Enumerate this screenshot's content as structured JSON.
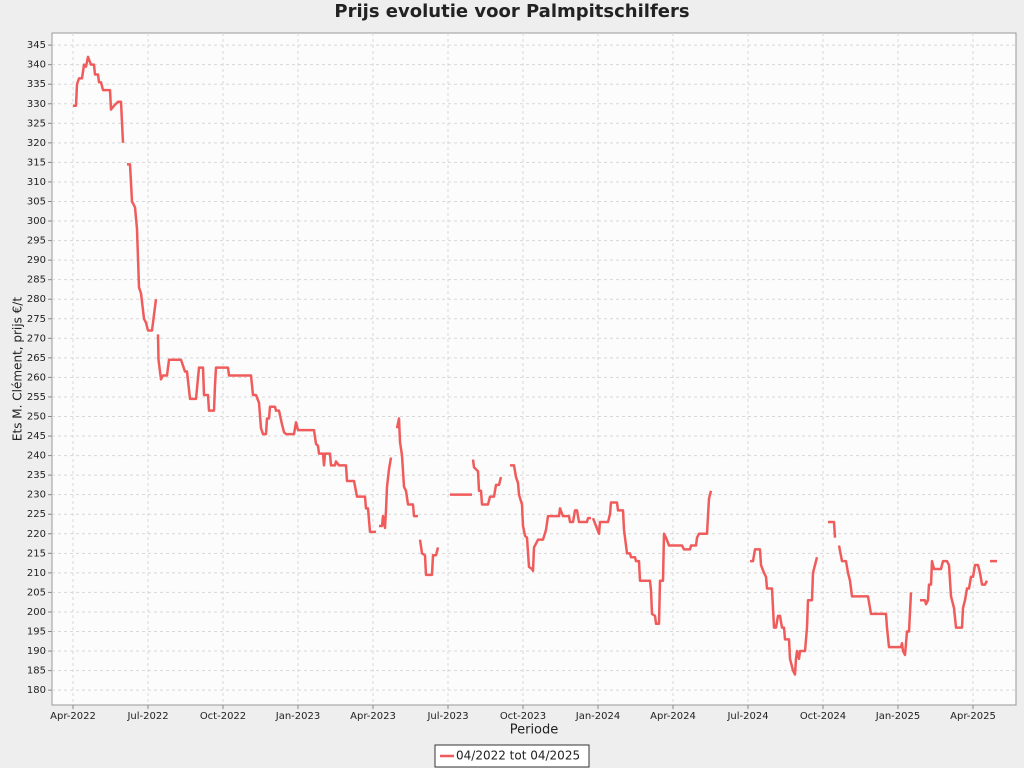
{
  "chart_data": {
    "type": "line",
    "title": "Prijs evolutie voor Palmpitschilfers",
    "x_label": "Periode",
    "y_label": "Ets M. Clément, prijs €/t",
    "xlim": [
      -0.84,
      37.72
    ],
    "ylim": [
      176.2,
      348.1
    ],
    "xticks": [
      {
        "value": 0,
        "label": "Apr-2022"
      },
      {
        "value": 3,
        "label": "Jul-2022"
      },
      {
        "value": 6,
        "label": "Oct-2022"
      },
      {
        "value": 9,
        "label": "Jan-2023"
      },
      {
        "value": 12,
        "label": "Apr-2023"
      },
      {
        "value": 15,
        "label": "Jul-2023"
      },
      {
        "value": 18,
        "label": "Oct-2023"
      },
      {
        "value": 21,
        "label": "Jan-2024"
      },
      {
        "value": 24,
        "label": "Apr-2024"
      },
      {
        "value": 27,
        "label": "Jul-2024"
      },
      {
        "value": 30,
        "label": "Oct-2024"
      },
      {
        "value": 33,
        "label": "Jan-2025"
      },
      {
        "value": 36,
        "label": "Apr-2025"
      }
    ],
    "yticks": [
      180,
      185,
      190,
      195,
      200,
      205,
      210,
      215,
      220,
      225,
      230,
      235,
      240,
      245,
      250,
      255,
      260,
      265,
      270,
      275,
      280,
      285,
      290,
      295,
      300,
      305,
      310,
      315,
      320,
      325,
      330,
      335,
      340,
      345
    ],
    "grid": true,
    "legend": "bottom",
    "series": [
      {
        "name": "04/2022 tot 04/2025",
        "color": "#f05c5c",
        "x": [
          0,
          0.12,
          0.16,
          0.24,
          0.36,
          0.44,
          0.52,
          0.6,
          0.72,
          0.84,
          0.88,
          1.0,
          1.04,
          1.12,
          1.2,
          1.48,
          1.52,
          1.64,
          1.8,
          1.92,
          2.0,
          null,
          2.16,
          2.28,
          2.36,
          2.48,
          2.56,
          2.64,
          2.72,
          2.84,
          2.92,
          3.0,
          3.16,
          3.32,
          null,
          3.4,
          3.42,
          3.52,
          3.6,
          3.76,
          3.84,
          4.32,
          4.48,
          4.56,
          4.68,
          4.92,
          5.04,
          5.2,
          5.24,
          5.4,
          5.44,
          5.64,
          5.68,
          5.72,
          6.2,
          6.24,
          7.12,
          7.2,
          7.32,
          7.44,
          7.52,
          7.6,
          7.72,
          7.76,
          7.84,
          7.88,
          8.08,
          8.12,
          8.24,
          8.36,
          8.44,
          8.52,
          8.84,
          8.92,
          9.0,
          9.64,
          9.72,
          9.8,
          9.84,
          10.0,
          10.04,
          10.08,
          10.28,
          10.32,
          10.48,
          10.52,
          10.64,
          10.92,
          10.96,
          11.24,
          11.36,
          11.68,
          11.72,
          11.8,
          11.88,
          12.12,
          null,
          12.24,
          12.36,
          12.4,
          12.48,
          12.52,
          12.56,
          12.64,
          12.72,
          null,
          12.96,
          13.04,
          13.08,
          13.16,
          13.24,
          13.32,
          13.4,
          13.6,
          13.64,
          13.8,
          null,
          13.88,
          13.96,
          14.08,
          14.12,
          14.36,
          14.4,
          14.52,
          14.6,
          null,
          15.08,
          15.96,
          null,
          16.0,
          16.04,
          16.2,
          16.24,
          16.32,
          16.36,
          16.6,
          16.68,
          16.84,
          16.92,
          17.04,
          17.12,
          null,
          17.48,
          17.64,
          17.72,
          17.8,
          17.84,
          17.96,
          18.0,
          18.08,
          18.16,
          18.24,
          18.36,
          18.4,
          18.44,
          18.6,
          18.8,
          18.92,
          19.0,
          19.44,
          19.48,
          19.6,
          19.84,
          19.88,
          20.0,
          20.08,
          20.16,
          20.24,
          20.56,
          20.6,
          20.72,
          null,
          20.8,
          20.92,
          21.04,
          21.08,
          21.4,
          21.48,
          21.52,
          21.76,
          21.8,
          22.0,
          22.04,
          22.16,
          22.28,
          22.32,
          22.48,
          22.52,
          22.64,
          22.68,
          23.08,
          23.12,
          23.16,
          23.28,
          23.32,
          23.44,
          23.48,
          23.6,
          23.64,
          23.72,
          23.84,
          24.36,
          24.44,
          24.68,
          24.72,
          24.92,
          24.96,
          25.04,
          25.36,
          25.44,
          25.52,
          null,
          27.08,
          27.2,
          27.28,
          27.48,
          27.52,
          27.64,
          27.72,
          27.76,
          27.96,
          28.04,
          28.12,
          28.2,
          28.28,
          28.36,
          28.44,
          28.48,
          28.64,
          28.68,
          28.8,
          28.88,
          28.92,
          28.96,
          29.04,
          29.08,
          29.28,
          29.32,
          29.36,
          29.4,
          29.56,
          29.6,
          29.68,
          29.76,
          null,
          30.2,
          30.44,
          30.48,
          null,
          30.64,
          30.76,
          30.92,
          31.0,
          31.08,
          31.16,
          31.8,
          31.88,
          31.92,
          32.52,
          32.56,
          32.64,
          33.12,
          33.16,
          33.2,
          33.28,
          33.36,
          33.44,
          33.52,
          null,
          33.88,
          34.08,
          34.12,
          34.2,
          34.24,
          34.32,
          34.36,
          34.44,
          34.72,
          34.8,
          34.96,
          35.04,
          35.12,
          35.24,
          35.32,
          35.56,
          35.6,
          35.68,
          35.76,
          35.84,
          35.92,
          36.0,
          36.08,
          36.2,
          36.28,
          36.36,
          36.48,
          36.56,
          null,
          36.68,
          36.96
        ],
        "values": [
          329.5,
          329.5,
          335,
          336.5,
          336.5,
          340,
          339.5,
          342,
          340,
          340,
          337.5,
          337.5,
          335.5,
          335.5,
          333.5,
          333.5,
          328.5,
          329.5,
          330.5,
          330.5,
          320,
          null,
          314.5,
          314.5,
          305,
          303.5,
          298,
          283,
          281.5,
          275,
          274,
          272,
          272,
          280,
          null,
          271,
          264.5,
          259.5,
          260.5,
          260.5,
          264.5,
          264.5,
          261.5,
          261.5,
          254.5,
          254.5,
          262.5,
          262.5,
          255.5,
          255.5,
          251.5,
          251.5,
          258,
          262.5,
          262.5,
          260.5,
          260.5,
          255.5,
          255.5,
          253.5,
          247,
          245.5,
          245.5,
          249.5,
          249.5,
          252.5,
          252.5,
          251.5,
          251.5,
          248,
          246,
          245.5,
          245.5,
          248.5,
          246.5,
          246.5,
          243,
          242.5,
          240.5,
          240.5,
          237.5,
          240.5,
          240.5,
          237.5,
          237.5,
          238.5,
          237.5,
          237.5,
          233.5,
          233.5,
          229.5,
          229.5,
          226.5,
          226.5,
          220.5,
          220.5,
          null,
          222,
          222,
          224.5,
          221.5,
          226,
          232,
          236.5,
          239.5,
          null,
          247,
          249.5,
          243.5,
          240,
          232,
          231,
          227.5,
          227.5,
          224.5,
          224.5,
          null,
          218.5,
          215,
          214.5,
          209.5,
          209.5,
          214.5,
          214.5,
          216.5,
          null,
          230,
          230,
          null,
          239,
          237,
          236,
          231,
          231,
          227.5,
          227.5,
          229.5,
          229.5,
          232.5,
          232.5,
          234.5,
          null,
          237.5,
          237.5,
          234.5,
          233,
          230,
          227.5,
          222,
          219.5,
          219,
          211.5,
          211,
          210.5,
          216.5,
          218.5,
          218.5,
          221,
          224.5,
          224.5,
          226.5,
          224.5,
          224.5,
          223,
          223,
          226,
          226,
          223,
          223,
          224,
          224,
          null,
          224,
          222,
          220,
          223,
          223,
          225,
          228,
          228,
          226,
          226,
          221,
          215,
          215,
          214,
          214,
          213,
          213,
          208,
          208,
          205.5,
          199.5,
          199,
          197,
          197,
          208,
          208,
          220,
          219,
          217,
          217,
          216,
          216,
          217,
          217,
          219,
          220,
          220,
          229,
          231,
          null,
          213,
          213,
          216,
          216,
          212,
          210,
          209,
          206,
          206,
          196,
          196,
          199,
          199,
          196,
          196,
          193,
          193,
          188,
          185,
          184,
          188,
          190,
          188,
          190,
          190,
          193,
          196,
          203,
          203,
          210,
          212,
          214,
          null,
          223,
          223,
          219,
          null,
          217,
          213,
          213,
          210,
          208,
          204,
          204,
          201,
          199.5,
          199.5,
          196,
          191,
          191,
          192,
          190,
          189,
          195,
          195,
          205,
          null,
          203,
          203,
          202,
          203,
          207,
          207,
          213,
          211,
          211,
          213,
          213,
          212,
          204,
          201,
          196,
          196,
          201,
          203,
          206,
          206,
          209,
          209,
          212,
          212,
          210,
          207,
          207,
          208,
          null,
          213,
          213
        ]
      }
    ]
  }
}
